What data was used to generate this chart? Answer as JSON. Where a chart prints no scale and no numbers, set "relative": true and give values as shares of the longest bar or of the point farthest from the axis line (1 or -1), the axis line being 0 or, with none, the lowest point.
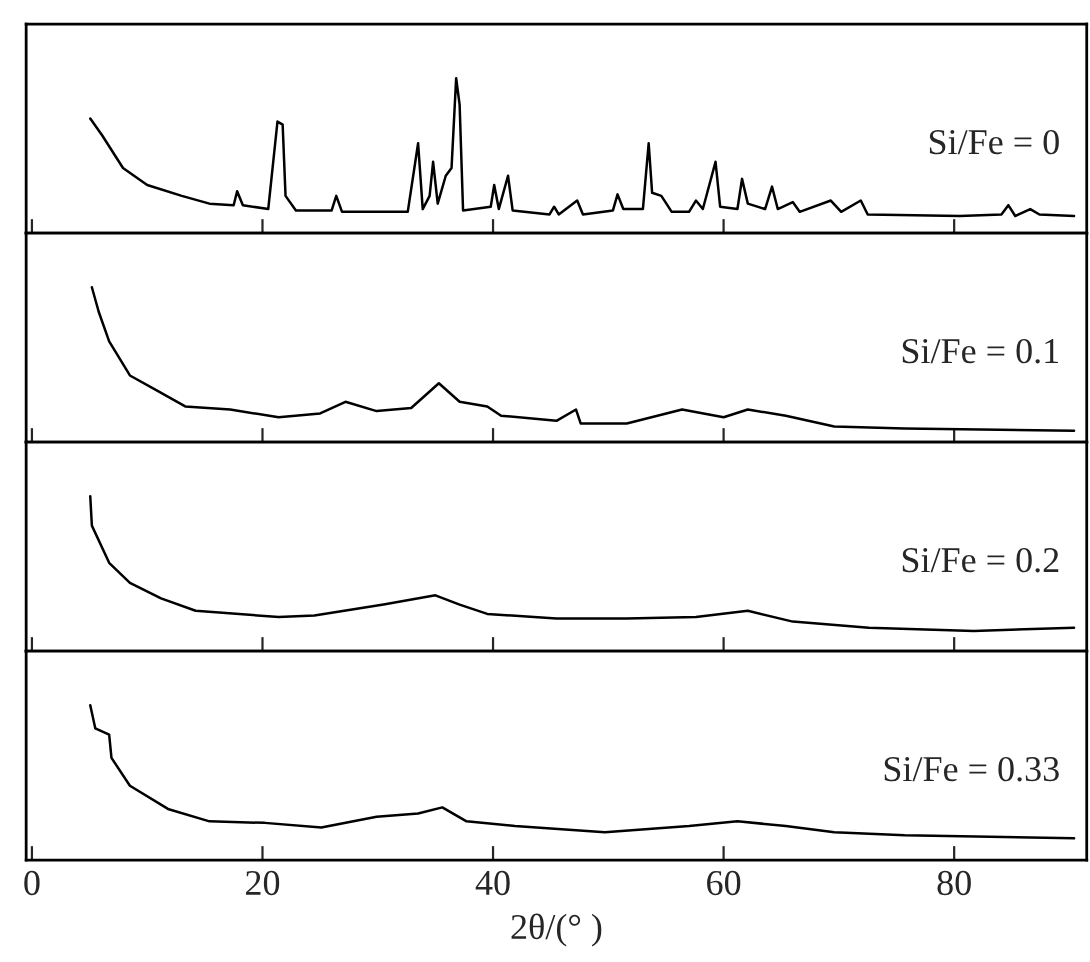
{
  "chart_data": [
    {
      "type": "line",
      "relative": true,
      "xlim": [
        -0.5,
        91.5
      ],
      "xticks": [
        0,
        20,
        40,
        60,
        80
      ],
      "tick_labels": false,
      "grid": false,
      "legend": false,
      "marker": "none",
      "line_style": "solid",
      "series": [
        {
          "name": "Si/Fe = 0",
          "color": "#000000",
          "x": [
            5.06,
            6.1,
            7.9,
            10.0,
            13.0,
            15.4,
            17.5,
            17.8,
            18.3,
            20.5,
            21.3,
            21.75,
            22.0,
            22.9,
            26.0,
            26.4,
            26.9,
            32.6,
            33.5,
            33.9,
            34.5,
            34.8,
            35.2,
            35.9,
            36.4,
            36.8,
            37.1,
            37.4,
            39.8,
            40.1,
            40.5,
            41.3,
            41.7,
            44.9,
            45.3,
            45.7,
            47.3,
            47.8,
            50.4,
            50.8,
            51.3,
            53.0,
            53.5,
            53.8,
            54.6,
            55.5,
            57.0,
            57.6,
            58.2,
            59.3,
            59.7,
            61.2,
            61.6,
            62.1,
            63.6,
            64.2,
            64.7,
            66.0,
            66.6,
            69.3,
            70.2,
            71.9,
            72.5,
            80.5,
            84.1,
            84.7,
            85.3,
            86.6,
            87.4,
            90.4
          ],
          "values": [
            0.74,
            0.63,
            0.42,
            0.31,
            0.24,
            0.19,
            0.18,
            0.27,
            0.18,
            0.155,
            0.72,
            0.7,
            0.24,
            0.146,
            0.146,
            0.24,
            0.137,
            0.137,
            0.58,
            0.155,
            0.24,
            0.46,
            0.19,
            0.37,
            0.42,
            1.0,
            0.83,
            0.146,
            0.17,
            0.31,
            0.155,
            0.37,
            0.146,
            0.12,
            0.17,
            0.12,
            0.21,
            0.12,
            0.146,
            0.25,
            0.155,
            0.155,
            0.58,
            0.26,
            0.24,
            0.137,
            0.137,
            0.21,
            0.155,
            0.46,
            0.17,
            0.155,
            0.35,
            0.19,
            0.155,
            0.3,
            0.155,
            0.2,
            0.137,
            0.21,
            0.137,
            0.21,
            0.12,
            0.11,
            0.12,
            0.18,
            0.11,
            0.155,
            0.12,
            0.11
          ]
        }
      ]
    },
    {
      "type": "line",
      "relative": true,
      "xlim": [
        -0.5,
        91.5
      ],
      "xticks": [
        0,
        20,
        40,
        60,
        80
      ],
      "tick_labels": false,
      "grid": false,
      "legend": false,
      "marker": "none",
      "line_style": "solid",
      "series": [
        {
          "name": "Si/Fe = 0.1",
          "color": "#000000",
          "x": [
            5.2,
            5.8,
            6.7,
            8.5,
            10.9,
            13.3,
            17.2,
            21.4,
            25.0,
            27.2,
            29.9,
            32.9,
            35.3,
            37.1,
            39.5,
            40.7,
            45.5,
            47.2,
            47.6,
            51.6,
            56.4,
            60.0,
            62.1,
            65.4,
            69.6,
            75.7,
            90.4
          ],
          "values": [
            1.0,
            0.84,
            0.65,
            0.43,
            0.33,
            0.23,
            0.21,
            0.16,
            0.185,
            0.26,
            0.2,
            0.22,
            0.38,
            0.26,
            0.23,
            0.17,
            0.137,
            0.21,
            0.12,
            0.12,
            0.21,
            0.16,
            0.21,
            0.17,
            0.1,
            0.088,
            0.073
          ]
        }
      ]
    },
    {
      "type": "line",
      "relative": true,
      "xlim": [
        -0.5,
        91.5
      ],
      "xticks": [
        0,
        20,
        40,
        60,
        80
      ],
      "tick_labels": false,
      "grid": false,
      "legend": false,
      "marker": "none",
      "line_style": "solid",
      "series": [
        {
          "name": "Si/Fe = 0.2",
          "color": "#000000",
          "x": [
            5.06,
            5.2,
            6.7,
            8.5,
            11.2,
            14.2,
            21.4,
            24.5,
            30.5,
            35.0,
            37.1,
            39.5,
            45.5,
            51.6,
            57.6,
            62.1,
            66.0,
            72.6,
            81.7,
            90.4
          ],
          "values": [
            1.0,
            0.81,
            0.57,
            0.44,
            0.34,
            0.26,
            0.22,
            0.23,
            0.3,
            0.36,
            0.3,
            0.24,
            0.21,
            0.21,
            0.22,
            0.26,
            0.19,
            0.15,
            0.13,
            0.15
          ]
        }
      ]
    },
    {
      "type": "line",
      "relative": true,
      "xlim": [
        -0.5,
        91.5
      ],
      "xticks": [
        0,
        20,
        40,
        60,
        80
      ],
      "tick_labels": "x",
      "xlabel": "2θ/(° )",
      "grid": false,
      "legend": false,
      "marker": "none",
      "line_style": "solid",
      "series": [
        {
          "name": "Si/Fe = 0.33",
          "color": "#000000",
          "x": [
            5.06,
            5.5,
            6.7,
            6.9,
            8.5,
            11.8,
            15.4,
            20.2,
            25.1,
            29.9,
            33.5,
            35.6,
            37.7,
            41.9,
            49.7,
            57.0,
            61.2,
            65.4,
            69.6,
            75.7,
            90.4
          ],
          "values": [
            1.0,
            0.85,
            0.81,
            0.66,
            0.48,
            0.33,
            0.25,
            0.24,
            0.21,
            0.28,
            0.3,
            0.34,
            0.25,
            0.22,
            0.18,
            0.22,
            0.25,
            0.22,
            0.18,
            0.16,
            0.14
          ]
        }
      ]
    }
  ]
}
